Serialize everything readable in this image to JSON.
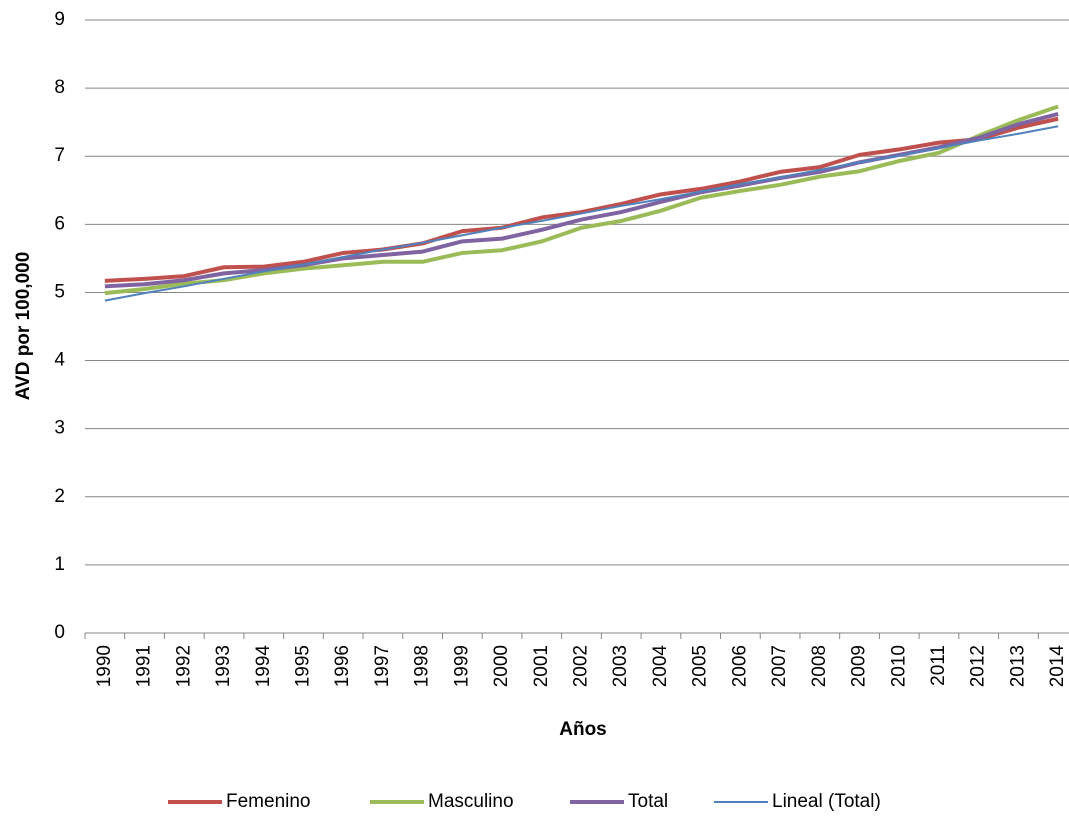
{
  "chart_data": {
    "type": "line",
    "x_label": "Años",
    "y_label": "AVD por 100,000",
    "categories": [
      "1990",
      "1991",
      "1992",
      "1993",
      "1994",
      "1995",
      "1996",
      "1997",
      "1998",
      "1999",
      "2000",
      "2001",
      "2002",
      "2003",
      "2004",
      "2005",
      "2006",
      "2007",
      "2008",
      "2009",
      "2010",
      "2011",
      "2012",
      "2013",
      "2014"
    ],
    "series": [
      {
        "name": "Femenino",
        "color": "#c0504d",
        "linewidth": 4,
        "values": [
          5.17,
          5.2,
          5.24,
          5.37,
          5.38,
          5.45,
          5.58,
          5.63,
          5.72,
          5.9,
          5.95,
          6.1,
          6.18,
          6.3,
          6.44,
          6.52,
          6.63,
          6.77,
          6.84,
          7.02,
          7.1,
          7.2,
          7.25,
          7.42,
          7.55
        ]
      },
      {
        "name": "Masculino",
        "color": "#9bbb59",
        "linewidth": 4,
        "values": [
          4.99,
          5.05,
          5.13,
          5.18,
          5.28,
          5.35,
          5.4,
          5.45,
          5.45,
          5.58,
          5.62,
          5.75,
          5.95,
          6.05,
          6.2,
          6.39,
          6.49,
          6.58,
          6.7,
          6.78,
          6.93,
          7.05,
          7.3,
          7.53,
          7.73
        ]
      },
      {
        "name": "Total",
        "color": "#8064a2",
        "linewidth": 4,
        "values": [
          5.09,
          5.12,
          5.18,
          5.28,
          5.33,
          5.4,
          5.5,
          5.55,
          5.6,
          5.75,
          5.79,
          5.92,
          6.07,
          6.18,
          6.33,
          6.47,
          6.57,
          6.68,
          6.77,
          6.91,
          7.02,
          7.13,
          7.27,
          7.47,
          7.62
        ]
      },
      {
        "name": "Lineal (Total)",
        "color": "#4f81bd",
        "linewidth": 2,
        "values": [
          4.88,
          4.99,
          5.09,
          5.2,
          5.31,
          5.41,
          5.52,
          5.63,
          5.73,
          5.84,
          5.95,
          6.05,
          6.16,
          6.27,
          6.37,
          6.48,
          6.59,
          6.69,
          6.8,
          6.91,
          7.01,
          7.12,
          7.23,
          7.33,
          7.44
        ]
      }
    ],
    "ylim": [
      0,
      9
    ],
    "yticks": [
      0,
      1,
      2,
      3,
      4,
      5,
      6,
      7,
      8,
      9
    ],
    "grid": true,
    "legend": "bottom"
  }
}
